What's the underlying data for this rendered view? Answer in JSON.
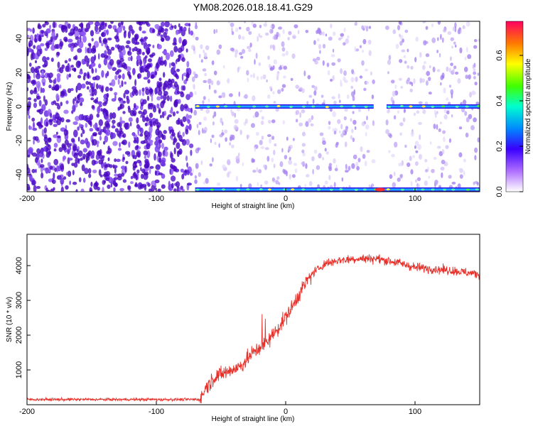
{
  "title": "YM08.2026.018.18.41.G29",
  "chart_data": [
    {
      "type": "heatmap",
      "name": "spectrogram",
      "xlabel": "Height of straight line (km)",
      "ylabel": "Frequency (Hz)",
      "xlim": [
        -200,
        150
      ],
      "ylim": [
        -50,
        50
      ],
      "xticks": [
        -200,
        -100,
        0,
        100
      ],
      "yticks": [
        -40,
        -20,
        0,
        20,
        40
      ],
      "colorbar": {
        "label": "Normalized spectral amplitude",
        "range": [
          0,
          0.75
        ],
        "ticks": [
          0.0,
          0.2,
          0.4,
          0.6
        ]
      },
      "features": [
        {
          "name": "carrier-line",
          "freq_hz": 0,
          "x_from": -70,
          "x_to": 150,
          "gap": [
            68,
            78
          ]
        },
        {
          "name": "bottom-edge-line",
          "freq_hz": -50,
          "x_from": -70,
          "x_to": 150
        }
      ]
    },
    {
      "type": "line",
      "name": "snr",
      "xlabel": "Height of straight line (km)",
      "ylabel": "SNR (10 * v/v)",
      "xlim": [
        -200,
        150
      ],
      "ylim": [
        0,
        4900
      ],
      "xticks": [
        -200,
        -100,
        0,
        100
      ],
      "yticks": [
        1000,
        2000,
        3000,
        4000
      ],
      "color": "#e8302a",
      "series": [
        {
          "name": "SNR",
          "x": [
            -200,
            -180,
            -160,
            -140,
            -120,
            -100,
            -80,
            -66,
            -62,
            -55,
            -45,
            -35,
            -25,
            -18,
            -10,
            -3,
            5,
            12,
            20,
            30,
            40,
            55,
            70,
            85,
            100,
            115,
            130,
            150
          ],
          "y": [
            150,
            150,
            150,
            150,
            150,
            150,
            150,
            150,
            480,
            800,
            950,
            1100,
            1500,
            1700,
            2000,
            2350,
            2800,
            3300,
            3750,
            4050,
            4150,
            4200,
            4200,
            4100,
            3950,
            3900,
            3850,
            3750
          ]
        }
      ]
    }
  ]
}
